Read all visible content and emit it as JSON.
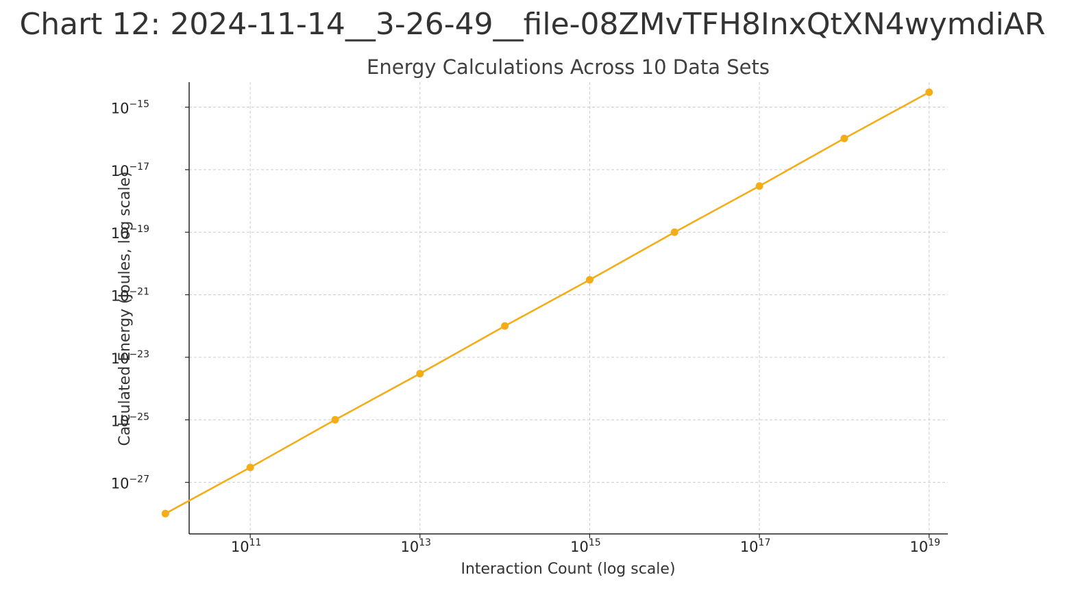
{
  "page_title": "Chart 12: 2024-11-14__3-26-49__file-08ZMvTFH8InxQtXN4wymdiAR",
  "colors": {
    "series": "#F5AD17",
    "grid": "#cccccc",
    "axis": "#222222"
  },
  "chart_data": {
    "type": "line",
    "title": "Energy Calculations Across 10 Data Sets",
    "xlabel": "Interaction Count (log scale)",
    "ylabel": "Calculated Energy (Joules, log scale)",
    "xscale": "log",
    "yscale": "log",
    "grid": true,
    "xlim_exp": [
      10.28,
      19.22
    ],
    "ylim_exp": [
      -28.65,
      -14.2
    ],
    "x_tick_exponents": [
      11,
      13,
      15,
      17,
      19
    ],
    "y_tick_exponents": [
      -15,
      -17,
      -19,
      -21,
      -23,
      -25,
      -27
    ],
    "series": [
      {
        "x": [
          10000000000.0,
          100000000000.0,
          1000000000000.0,
          10000000000000.0,
          100000000000000.0,
          1000000000000000.0,
          1e+16,
          1e+17,
          1e+18,
          1e+19
        ],
        "y": [
          1e-28,
          3e-27,
          1e-25,
          3e-24,
          1e-22,
          3e-21,
          1e-19,
          3e-18,
          1e-16,
          3e-15
        ]
      }
    ]
  }
}
